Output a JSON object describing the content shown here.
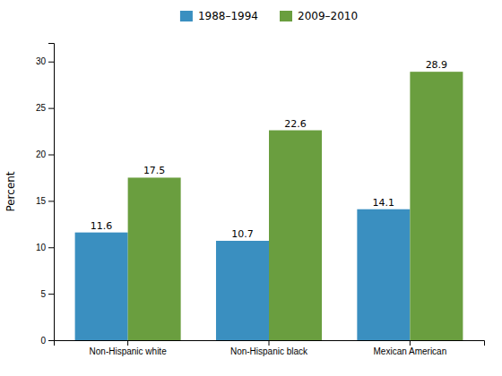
{
  "chart_data": {
    "type": "bar",
    "categories": [
      "Non-Hispanic white",
      "Non-Hispanic black",
      "Mexican American"
    ],
    "series": [
      {
        "name": "1988–1994",
        "color": "#3a8fc0",
        "values": [
          11.6,
          10.7,
          14.1
        ]
      },
      {
        "name": "2009–2010",
        "color": "#6a9e3f",
        "values": [
          17.5,
          22.6,
          28.9
        ]
      }
    ],
    "ylabel": "Percent",
    "ylim": [
      0,
      32
    ],
    "yticks": [
      0,
      5,
      10,
      15,
      20,
      25,
      30
    ],
    "grid": false,
    "legend": "top",
    "data_labels": true
  }
}
